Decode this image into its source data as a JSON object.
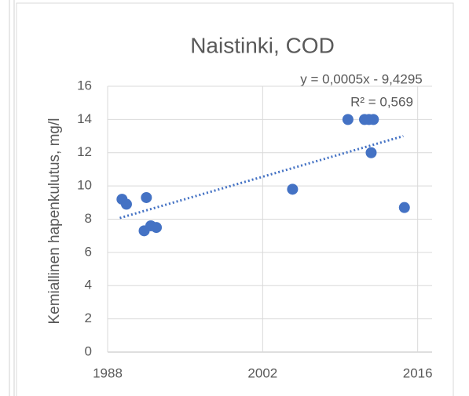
{
  "chart_data": {
    "type": "scatter",
    "title": "Naistinki, COD",
    "y_label": "Kemiallinen hapenkulutus, mg/l",
    "annotations": [
      "y = 0,0005x - 9,4295",
      "R² = 0,569"
    ],
    "series": [
      {
        "color": "#4472c4",
        "x": [
          1989.3,
          1989.7,
          1991.5,
          1991.3,
          1991.9,
          1992.4,
          2004.7,
          2009.7,
          2011.2,
          2011.6,
          2012.0,
          2011.8,
          2014.8
        ],
        "values": [
          9.2,
          8.9,
          9.3,
          7.3,
          7.6,
          7.5,
          9.8,
          14,
          14,
          14,
          14,
          12,
          8.7
        ]
      }
    ],
    "trendline": {
      "color": "#4472c4",
      "x": [
        1989.1,
        2014.7
      ],
      "values": [
        8.07,
        13.0
      ]
    },
    "xlim": [
      1988,
      2017.3
    ],
    "xticks": [
      1988,
      2002,
      2016
    ],
    "ylim": [
      0,
      16
    ],
    "yticks": [
      0,
      2,
      4,
      6,
      8,
      10,
      12,
      14,
      16
    ],
    "grid": true
  }
}
